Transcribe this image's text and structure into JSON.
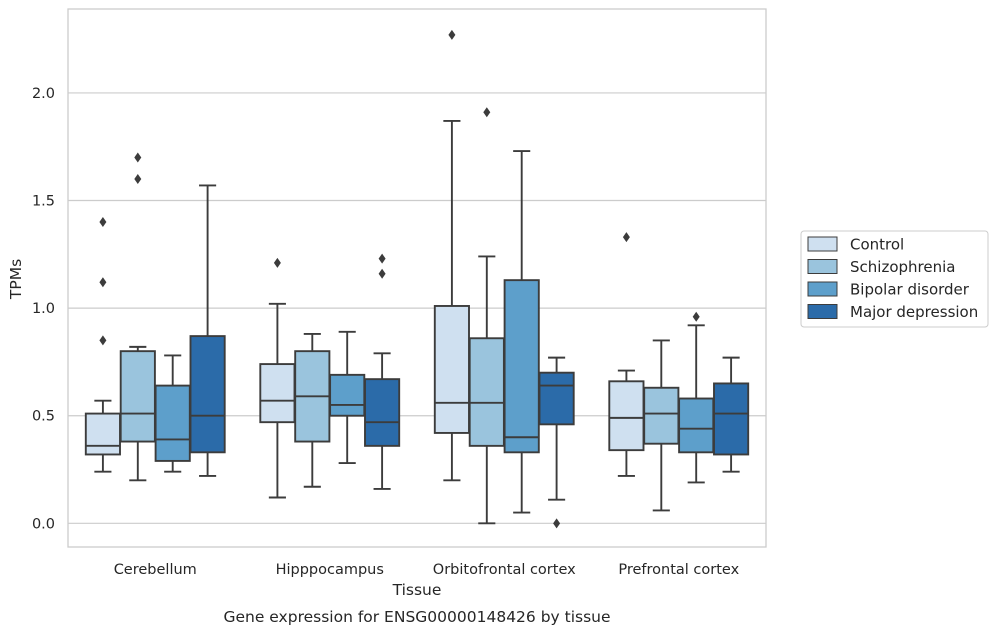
{
  "caption": "Gene expression for ENSG00000148426 by tissue",
  "chart_data": {
    "type": "boxplot",
    "xlabel": "Tissue",
    "ylabel": "TPMs",
    "ylim": [
      -0.11,
      2.39
    ],
    "yticks": [
      0.0,
      0.5,
      1.0,
      1.5,
      2.0
    ],
    "ytick_labels": [
      "0.0",
      "0.5",
      "1.0",
      "1.5",
      "2.0"
    ],
    "grid": "horizontal",
    "legend_position": "right-outside",
    "categories": [
      "Cerebellum",
      "Hipppocampus",
      "Orbitofrontal cortex",
      "Prefrontal cortex"
    ],
    "series": [
      {
        "name": "Control",
        "color": "#cfe0f0",
        "boxes": [
          {
            "whislo": 0.24,
            "q1": 0.32,
            "med": 0.36,
            "q3": 0.51,
            "whishi": 0.57,
            "fliers": [
              0.85,
              1.12,
              1.4
            ]
          },
          {
            "whislo": 0.12,
            "q1": 0.47,
            "med": 0.57,
            "q3": 0.74,
            "whishi": 1.02,
            "fliers": [
              1.21
            ]
          },
          {
            "whislo": 0.2,
            "q1": 0.42,
            "med": 0.56,
            "q3": 1.01,
            "whishi": 1.87,
            "fliers": [
              2.27
            ]
          },
          {
            "whislo": 0.22,
            "q1": 0.34,
            "med": 0.49,
            "q3": 0.66,
            "whishi": 0.71,
            "fliers": [
              1.33
            ]
          }
        ]
      },
      {
        "name": "Schizophrenia",
        "color": "#9ac4dd",
        "boxes": [
          {
            "whislo": 0.2,
            "q1": 0.38,
            "med": 0.51,
            "q3": 0.8,
            "whishi": 0.82,
            "fliers": [
              1.6,
              1.7
            ]
          },
          {
            "whislo": 0.17,
            "q1": 0.38,
            "med": 0.59,
            "q3": 0.8,
            "whishi": 0.88,
            "fliers": []
          },
          {
            "whislo": 0.0,
            "q1": 0.36,
            "med": 0.56,
            "q3": 0.86,
            "whishi": 1.24,
            "fliers": [
              1.91
            ]
          },
          {
            "whislo": 0.06,
            "q1": 0.37,
            "med": 0.51,
            "q3": 0.63,
            "whishi": 0.85,
            "fliers": []
          }
        ]
      },
      {
        "name": "Bipolar disorder",
        "color": "#5d9fcb",
        "boxes": [
          {
            "whislo": 0.24,
            "q1": 0.29,
            "med": 0.39,
            "q3": 0.64,
            "whishi": 0.78,
            "fliers": []
          },
          {
            "whislo": 0.28,
            "q1": 0.5,
            "med": 0.55,
            "q3": 0.69,
            "whishi": 0.89,
            "fliers": []
          },
          {
            "whislo": 0.05,
            "q1": 0.33,
            "med": 0.4,
            "q3": 1.13,
            "whishi": 1.73,
            "fliers": []
          },
          {
            "whislo": 0.19,
            "q1": 0.33,
            "med": 0.44,
            "q3": 0.58,
            "whishi": 0.92,
            "fliers": [
              0.96
            ]
          }
        ]
      },
      {
        "name": "Major depression",
        "color": "#2b6ba9",
        "boxes": [
          {
            "whislo": 0.22,
            "q1": 0.33,
            "med": 0.5,
            "q3": 0.87,
            "whishi": 1.57,
            "fliers": []
          },
          {
            "whislo": 0.16,
            "q1": 0.36,
            "med": 0.47,
            "q3": 0.67,
            "whishi": 0.79,
            "fliers": [
              1.16,
              1.23
            ]
          },
          {
            "whislo": 0.11,
            "q1": 0.46,
            "med": 0.64,
            "q3": 0.7,
            "whishi": 0.77,
            "fliers": [
              0.0
            ]
          },
          {
            "whislo": 0.24,
            "q1": 0.32,
            "med": 0.51,
            "q3": 0.65,
            "whishi": 0.77,
            "fliers": []
          }
        ]
      }
    ]
  }
}
